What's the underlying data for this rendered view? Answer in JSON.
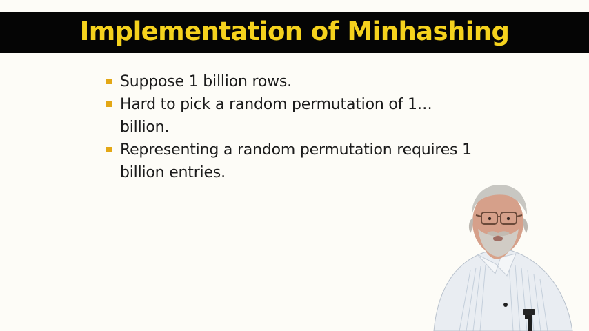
{
  "slide": {
    "title": "Implementation of Minhashing",
    "bullets": [
      "Suppose 1 billion rows.",
      "Hard to pick a random permutation of 1… billion.",
      "Representing a random permutation requires 1 billion entries."
    ]
  },
  "colors": {
    "title_bar": "#050505",
    "title_text": "#f5d21d",
    "bullet_marker": "#e3a715",
    "slide_background": "#fdfcf7"
  }
}
